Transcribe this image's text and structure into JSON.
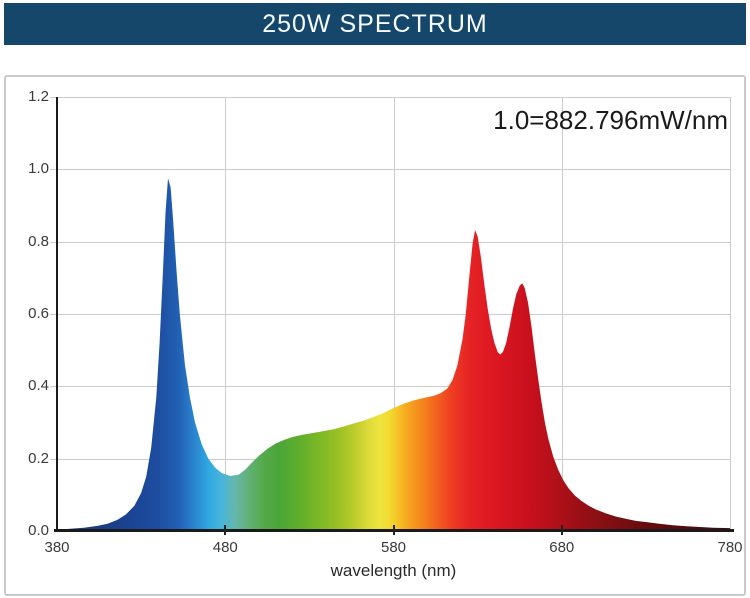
{
  "header": {
    "title": "250W SPECTRUM"
  },
  "colors": {
    "header_bg": "#15476b",
    "header_text": "#f7fafc",
    "panel_border": "#c9cacb",
    "grid": "#cccccc",
    "axis": "#1a1a1a",
    "tick_mark": "#222222",
    "tick_label": "#3a3a3a",
    "annotation_text": "#1a1a1a",
    "axis_title_text": "#2a2a2a"
  },
  "chart_data": {
    "type": "area",
    "title": "250W SPECTRUM",
    "annotation": "1.0=882.796mW/nm",
    "xlabel": "wavelength (nm)",
    "ylabel": "",
    "xlim": [
      380,
      780
    ],
    "ylim": [
      0.0,
      1.2
    ],
    "x_ticks": [
      380,
      480,
      580,
      680,
      780
    ],
    "y_ticks": [
      0.0,
      0.2,
      0.4,
      0.6,
      0.8,
      1.0,
      1.2
    ],
    "grid": "on",
    "legend": "none",
    "series_name": "relative spectral power (1.0 = 882.796 mW/nm)",
    "peaks": [
      {
        "wavelength_nm": 446,
        "value": 0.98
      },
      {
        "wavelength_nm": 628,
        "value": 0.83
      },
      {
        "wavelength_nm": 657,
        "value": 0.69
      }
    ],
    "valleys": [
      {
        "wavelength_nm": 483,
        "value": 0.15
      },
      {
        "wavelength_nm": 643,
        "value": 0.49
      }
    ],
    "points": [
      [
        380,
        0.004
      ],
      [
        388,
        0.006
      ],
      [
        396,
        0.009
      ],
      [
        404,
        0.014
      ],
      [
        410,
        0.02
      ],
      [
        416,
        0.031
      ],
      [
        421,
        0.046
      ],
      [
        426,
        0.07
      ],
      [
        430,
        0.105
      ],
      [
        433,
        0.15
      ],
      [
        436,
        0.23
      ],
      [
        439,
        0.37
      ],
      [
        441,
        0.52
      ],
      [
        443,
        0.72
      ],
      [
        444.5,
        0.88
      ],
      [
        446,
        0.975
      ],
      [
        447.5,
        0.95
      ],
      [
        449,
        0.86
      ],
      [
        451,
        0.72
      ],
      [
        453,
        0.6
      ],
      [
        456,
        0.46
      ],
      [
        459,
        0.37
      ],
      [
        462,
        0.3
      ],
      [
        466,
        0.24
      ],
      [
        470,
        0.2
      ],
      [
        474,
        0.175
      ],
      [
        478,
        0.16
      ],
      [
        483,
        0.152
      ],
      [
        488,
        0.156
      ],
      [
        492,
        0.17
      ],
      [
        496,
        0.19
      ],
      [
        500,
        0.208
      ],
      [
        505,
        0.227
      ],
      [
        510,
        0.242
      ],
      [
        515,
        0.252
      ],
      [
        520,
        0.26
      ],
      [
        526,
        0.266
      ],
      [
        532,
        0.271
      ],
      [
        538,
        0.276
      ],
      [
        544,
        0.281
      ],
      [
        550,
        0.288
      ],
      [
        556,
        0.297
      ],
      [
        562,
        0.305
      ],
      [
        568,
        0.315
      ],
      [
        574,
        0.326
      ],
      [
        580,
        0.34
      ],
      [
        586,
        0.352
      ],
      [
        592,
        0.361
      ],
      [
        598,
        0.368
      ],
      [
        604,
        0.374
      ],
      [
        608,
        0.381
      ],
      [
        612,
        0.394
      ],
      [
        615,
        0.417
      ],
      [
        618,
        0.458
      ],
      [
        621,
        0.53
      ],
      [
        623,
        0.6
      ],
      [
        625,
        0.7
      ],
      [
        627,
        0.795
      ],
      [
        628.5,
        0.832
      ],
      [
        630,
        0.815
      ],
      [
        632,
        0.755
      ],
      [
        634,
        0.68
      ],
      [
        636,
        0.615
      ],
      [
        638,
        0.56
      ],
      [
        640,
        0.52
      ],
      [
        642,
        0.494
      ],
      [
        643.5,
        0.488
      ],
      [
        645,
        0.495
      ],
      [
        647,
        0.52
      ],
      [
        649,
        0.565
      ],
      [
        651,
        0.615
      ],
      [
        653,
        0.655
      ],
      [
        655,
        0.678
      ],
      [
        656.5,
        0.685
      ],
      [
        658,
        0.672
      ],
      [
        660,
        0.63
      ],
      [
        662,
        0.565
      ],
      [
        664,
        0.49
      ],
      [
        666,
        0.42
      ],
      [
        668,
        0.355
      ],
      [
        670,
        0.3
      ],
      [
        672,
        0.255
      ],
      [
        675,
        0.205
      ],
      [
        678,
        0.168
      ],
      [
        681,
        0.14
      ],
      [
        684,
        0.118
      ],
      [
        688,
        0.097
      ],
      [
        692,
        0.082
      ],
      [
        696,
        0.07
      ],
      [
        700,
        0.06
      ],
      [
        706,
        0.049
      ],
      [
        712,
        0.04
      ],
      [
        718,
        0.034
      ],
      [
        724,
        0.028
      ],
      [
        731,
        0.024
      ],
      [
        738,
        0.02
      ],
      [
        746,
        0.016
      ],
      [
        754,
        0.013
      ],
      [
        762,
        0.011
      ],
      [
        770,
        0.009
      ],
      [
        780,
        0.008
      ]
    ],
    "wavelength_colors": [
      [
        380,
        "#17356e"
      ],
      [
        420,
        "#1a4190"
      ],
      [
        440,
        "#1e4da0"
      ],
      [
        452,
        "#2160b4"
      ],
      [
        462,
        "#2a86cf"
      ],
      [
        470,
        "#2fa9e1"
      ],
      [
        478,
        "#49b4d9"
      ],
      [
        486,
        "#66b7ab"
      ],
      [
        494,
        "#62b077"
      ],
      [
        502,
        "#55aa4c"
      ],
      [
        512,
        "#4aa637"
      ],
      [
        524,
        "#5fae2c"
      ],
      [
        536,
        "#7cb827"
      ],
      [
        548,
        "#9cc224"
      ],
      [
        558,
        "#c0ce2e"
      ],
      [
        566,
        "#e0dc3a"
      ],
      [
        572,
        "#eee43f"
      ],
      [
        578,
        "#f3d92f"
      ],
      [
        584,
        "#f5bb25"
      ],
      [
        590,
        "#f5a01f"
      ],
      [
        598,
        "#f4811c"
      ],
      [
        606,
        "#f2601e"
      ],
      [
        614,
        "#ee3f22"
      ],
      [
        624,
        "#e62524"
      ],
      [
        634,
        "#e01b23"
      ],
      [
        648,
        "#d51420"
      ],
      [
        662,
        "#c70f1c"
      ],
      [
        676,
        "#b31019"
      ],
      [
        690,
        "#9c0f16"
      ],
      [
        706,
        "#831013"
      ],
      [
        724,
        "#6d0d10"
      ],
      [
        744,
        "#5a0a0c"
      ],
      [
        780,
        "#45070a"
      ]
    ]
  }
}
